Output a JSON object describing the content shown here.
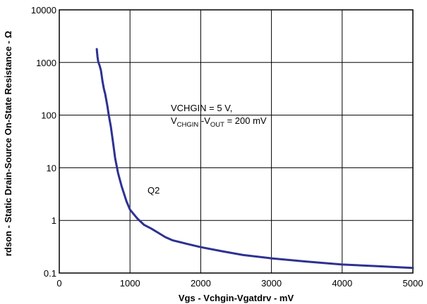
{
  "chart_data": {
    "type": "line",
    "xlabel": "Vgs - Vchgin-Vgatdrv - mV",
    "ylabel": "rdson - Static Drain-Source On-State Resistance - Ω",
    "xlim": [
      0,
      5000
    ],
    "ylim": [
      0.1,
      10000
    ],
    "y_scale": "log",
    "grid": true,
    "x_ticks": [
      "0",
      "1000",
      "2000",
      "3000",
      "4000",
      "5000"
    ],
    "y_ticks": [
      "0.1",
      "1",
      "10",
      "100",
      "1000",
      "10000"
    ],
    "series": [
      {
        "name": "Q2",
        "color": "#2e3192",
        "x": [
          530,
          540,
          550,
          560,
          570,
          590,
          610,
          630,
          650,
          680,
          700,
          730,
          760,
          790,
          830,
          880,
          950,
          1000,
          1100,
          1200,
          1300,
          1400,
          1500,
          1600,
          1800,
          2000,
          2300,
          2600,
          3000,
          3500,
          4000,
          4500,
          5000
        ],
        "y": [
          1800,
          1300,
          1050,
          950,
          880,
          700,
          450,
          320,
          250,
          150,
          100,
          60,
          30,
          15,
          8,
          4.5,
          2.3,
          1.6,
          1.1,
          0.82,
          0.7,
          0.58,
          0.48,
          0.42,
          0.36,
          0.31,
          0.26,
          0.22,
          0.19,
          0.165,
          0.145,
          0.135,
          0.125
        ]
      }
    ],
    "annotations": {
      "condition_line1": "VCHGIN = 5 V,",
      "cond2_v1": "V",
      "cond2_sub1": "CHGIN",
      "cond2_mid": " -V",
      "cond2_sub2": "OUT",
      "cond2_end": " = 200 mV",
      "curve_label": "Q2"
    }
  }
}
